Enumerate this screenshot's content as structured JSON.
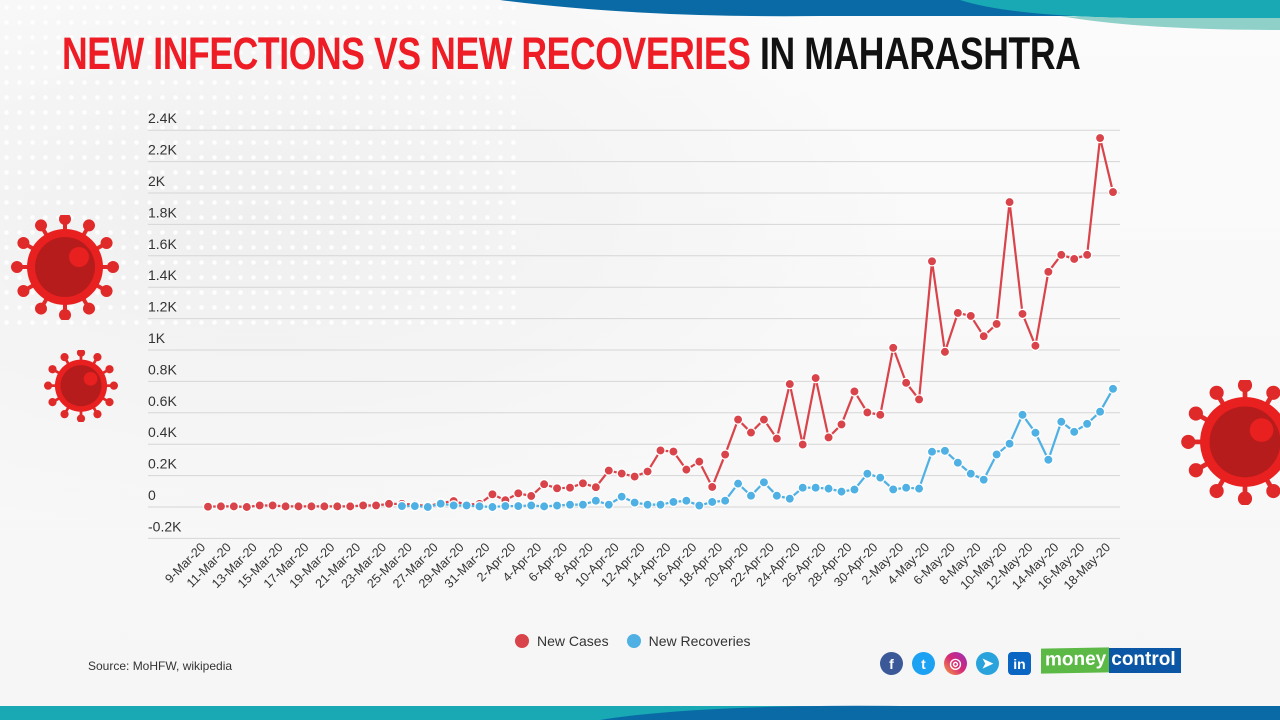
{
  "title": {
    "part_red": "NEW INFECTIONS VS NEW RECOVERIES",
    "part_black": "IN MAHARASHTRA"
  },
  "source": "Source: MoHFW, wikipedia",
  "brand": {
    "part1": "money",
    "part2": "control",
    "color1": "#5cb946",
    "color2": "#0c57a5"
  },
  "social_icons": [
    "facebook-icon",
    "twitter-icon",
    "instagram-icon",
    "telegram-icon",
    "linkedin-icon"
  ],
  "colors": {
    "title_red": "#ee1c25",
    "new_cases": "#d9434a",
    "new_recoveries": "#4fb0e3"
  },
  "chart_data": {
    "type": "line",
    "title": "NEW INFECTIONS VS NEW RECOVERIES IN MAHARASHTRA",
    "xlabel": "",
    "ylabel": "",
    "ylim": [
      -200,
      2400
    ],
    "yticks": [
      -200,
      0,
      200,
      400,
      600,
      800,
      1000,
      1200,
      1400,
      1600,
      1800,
      2000,
      2200,
      2400
    ],
    "ytick_labels": [
      "-0.2K",
      "0",
      "0.2K",
      "0.4K",
      "0.6K",
      "0.8K",
      "1K",
      "1.2K",
      "1.4K",
      "1.6K",
      "1.8K",
      "2K",
      "2.2K",
      "2.4K"
    ],
    "grid": true,
    "legend_position": "bottom",
    "x": [
      "9-Mar-20",
      "10-Mar-20",
      "11-Mar-20",
      "12-Mar-20",
      "13-Mar-20",
      "14-Mar-20",
      "15-Mar-20",
      "16-Mar-20",
      "17-Mar-20",
      "18-Mar-20",
      "19-Mar-20",
      "20-Mar-20",
      "21-Mar-20",
      "22-Mar-20",
      "23-Mar-20",
      "24-Mar-20",
      "25-Mar-20",
      "26-Mar-20",
      "27-Mar-20",
      "28-Mar-20",
      "29-Mar-20",
      "30-Mar-20",
      "31-Mar-20",
      "1-Apr-20",
      "2-Apr-20",
      "3-Apr-20",
      "4-Apr-20",
      "5-Apr-20",
      "6-Apr-20",
      "7-Apr-20",
      "8-Apr-20",
      "9-Apr-20",
      "10-Apr-20",
      "11-Apr-20",
      "12-Apr-20",
      "13-Apr-20",
      "14-Apr-20",
      "15-Apr-20",
      "16-Apr-20",
      "17-Apr-20",
      "18-Apr-20",
      "19-Apr-20",
      "20-Apr-20",
      "21-Apr-20",
      "22-Apr-20",
      "23-Apr-20",
      "24-Apr-20",
      "25-Apr-20",
      "26-Apr-20",
      "27-Apr-20",
      "28-Apr-20",
      "29-Apr-20",
      "30-Apr-20",
      "1-May-20",
      "2-May-20",
      "3-May-20",
      "4-May-20",
      "5-May-20",
      "6-May-20",
      "7-May-20",
      "8-May-20",
      "9-May-20",
      "10-May-20",
      "11-May-20",
      "12-May-20",
      "13-May-20",
      "14-May-20",
      "15-May-20",
      "16-May-20",
      "17-May-20",
      "18-May-20"
    ],
    "series": [
      {
        "name": "New Cases",
        "color": "#d9434a",
        "values": [
          2,
          4,
          4,
          0,
          10,
          10,
          4,
          4,
          4,
          4,
          4,
          4,
          10,
          10,
          20,
          20,
          15,
          5,
          25,
          38,
          15,
          20,
          81,
          43,
          87,
          70,
          145,
          119,
          123,
          151,
          126,
          232,
          213,
          194,
          226,
          360,
          353,
          238,
          289,
          128,
          334,
          557,
          474,
          557,
          436,
          783,
          398,
          821,
          443,
          526,
          736,
          602,
          587,
          1014,
          791,
          685,
          1565,
          988,
          1236,
          1217,
          1088,
          1166,
          1942,
          1230,
          1027,
          1498,
          1606,
          1580,
          1606,
          2350,
          2006
        ]
      },
      {
        "name": "New Recoveries",
        "color": "#4fb0e3",
        "values": [
          null,
          null,
          null,
          null,
          null,
          null,
          null,
          null,
          null,
          null,
          null,
          null,
          null,
          null,
          null,
          6,
          6,
          0,
          21,
          10,
          10,
          4,
          0,
          6,
          6,
          10,
          4,
          9,
          15,
          15,
          40,
          15,
          66,
          28,
          15,
          15,
          32,
          40,
          9,
          32,
          40,
          149,
          72,
          157,
          72,
          53,
          123,
          123,
          117,
          98,
          111,
          212,
          187,
          112,
          123,
          117,
          352,
          358,
          282,
          212,
          174,
          335,
          403,
          587,
          473,
          301,
          543,
          479,
          530,
          607,
          753
        ]
      }
    ]
  }
}
